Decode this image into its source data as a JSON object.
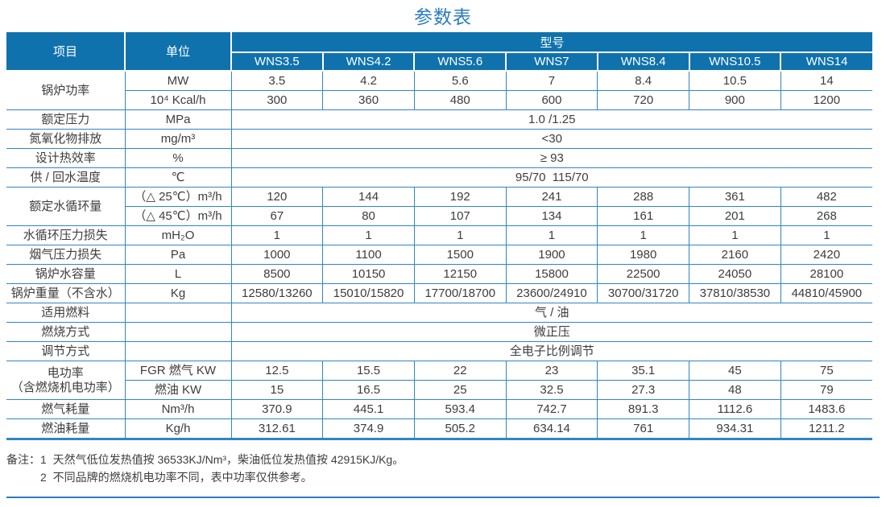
{
  "title": "参数表",
  "colors": {
    "header_bg": "#0f72ad",
    "border_blue": "#2f86c2",
    "title_blue": "#2a7cbe",
    "body_text": "#3d3d3d"
  },
  "table": {
    "header": {
      "item": "项目",
      "unit": "单位",
      "model_group": "型号",
      "models": [
        "WNS3.5",
        "WNS4.2",
        "WNS5.6",
        "WNS7",
        "WNS8.4",
        "WNS10.5",
        "WNS14"
      ]
    },
    "rows": [
      {
        "item": "锅炉功率",
        "item_rowspan": 2,
        "unit": "MW",
        "values": [
          "3.5",
          "4.2",
          "5.6",
          "7",
          "8.4",
          "10.5",
          "14"
        ]
      },
      {
        "unit": "10⁴ Kcal/h",
        "values": [
          "300",
          "360",
          "480",
          "600",
          "720",
          "900",
          "1200"
        ]
      },
      {
        "item": "额定压力",
        "unit": "MPa",
        "span": "1.0 /1.25"
      },
      {
        "item": "氮氧化物排放",
        "unit": "mg/m³",
        "span": "<30"
      },
      {
        "item": "设计热效率",
        "unit": "%",
        "span": "≥ 93"
      },
      {
        "item": "供 / 回水温度",
        "unit": "℃",
        "span": "95/70  115/70"
      },
      {
        "item": "额定水循环量",
        "item_rowspan": 2,
        "unit": "（△ 25℃）m³/h",
        "values": [
          "120",
          "144",
          "192",
          "241",
          "288",
          "361",
          "482"
        ]
      },
      {
        "unit": "（△ 45℃）m³/h",
        "values": [
          "67",
          "80",
          "107",
          "134",
          "161",
          "201",
          "268"
        ]
      },
      {
        "item": "水循环压力损失",
        "unit": "mH₂O",
        "values": [
          "1",
          "1",
          "1",
          "1",
          "1",
          "1",
          "1"
        ]
      },
      {
        "item": "烟气压力损失",
        "unit": "Pa",
        "values": [
          "1000",
          "1100",
          "1500",
          "1900",
          "1980",
          "2160",
          "2420"
        ]
      },
      {
        "item": "锅炉水容量",
        "unit": "L",
        "values": [
          "8500",
          "10150",
          "12150",
          "15800",
          "22500",
          "24050",
          "28100"
        ]
      },
      {
        "item": "锅炉重量（不含水）",
        "unit": "Kg",
        "values": [
          "12580/13260",
          "15010/15820",
          "17700/18700",
          "23600/24910",
          "30700/31720",
          "37810/38530",
          "44810/45900"
        ]
      },
      {
        "item": "适用燃料",
        "unit": "",
        "span": "气 / 油"
      },
      {
        "item": "燃烧方式",
        "unit": "",
        "span": "微正压"
      },
      {
        "item": "调节方式",
        "unit": "",
        "span": "全电子比例调节"
      },
      {
        "item": "电功率\n（含燃烧机电功率）",
        "item_rowspan": 2,
        "unit": "FGR 燃气 KW",
        "values": [
          "12.5",
          "15.5",
          "22",
          "23",
          "35.1",
          "45",
          "75"
        ]
      },
      {
        "unit": "燃油 KW",
        "values": [
          "15",
          "16.5",
          "25",
          "32.5",
          "27.3",
          "48",
          "79"
        ]
      },
      {
        "item": "燃气耗量",
        "unit": "Nm³/h",
        "values": [
          "370.9",
          "445.1",
          "593.4",
          "742.7",
          "891.3",
          "1112.6",
          "1483.6"
        ]
      },
      {
        "item": "燃油耗量",
        "unit": "Kg/h",
        "values": [
          "312.61",
          "374.9",
          "505.2",
          "634.14",
          "761",
          "934.31",
          "1211.2"
        ]
      }
    ]
  },
  "notes": {
    "label": "备注：",
    "items": [
      "1  天然气低位发热值按 36533KJ/Nm³，柴油低位发热值按 42915KJ/Kg。",
      "2  不同品牌的燃烧机电功率不同，表中功率仅供参考。"
    ]
  }
}
